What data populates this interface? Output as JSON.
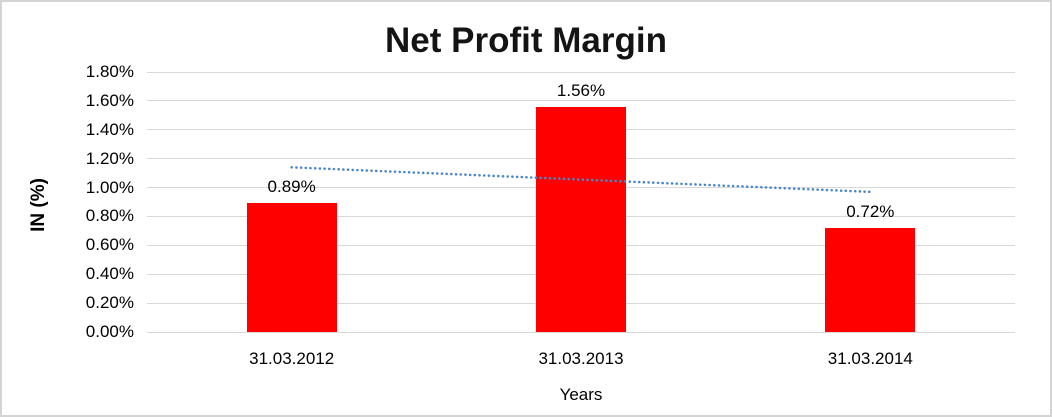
{
  "chart": {
    "title": "Net Profit Margin",
    "y_axis_title": "IN (%)",
    "x_axis_title": "Years"
  },
  "chart_data": {
    "type": "bar",
    "title": "Net Profit Margin",
    "xlabel": "Years",
    "ylabel": "IN (%)",
    "categories": [
      "31.03.2012",
      "31.03.2013",
      "31.03.2014"
    ],
    "values": [
      0.89,
      1.56,
      0.72
    ],
    "data_labels": [
      "0.89%",
      "1.56%",
      "0.72%"
    ],
    "ylim": [
      0,
      1.8
    ],
    "ytick_values": [
      0,
      0.2,
      0.4,
      0.6,
      0.8,
      1.0,
      1.2,
      1.4,
      1.6,
      1.8
    ],
    "ytick_labels": [
      "0.00%",
      "0.20%",
      "0.40%",
      "0.60%",
      "0.80%",
      "1.00%",
      "1.20%",
      "1.40%",
      "1.60%",
      "1.80%"
    ],
    "grid": "horizontal",
    "legend": "none",
    "bar_color": "#FF0000",
    "gridline_color": "#D9D9D9",
    "text_color": "#000000",
    "trendline": {
      "type": "linear",
      "style": "dotted",
      "color": "#4A86C8",
      "start_value": 1.14,
      "end_value": 0.97
    }
  }
}
